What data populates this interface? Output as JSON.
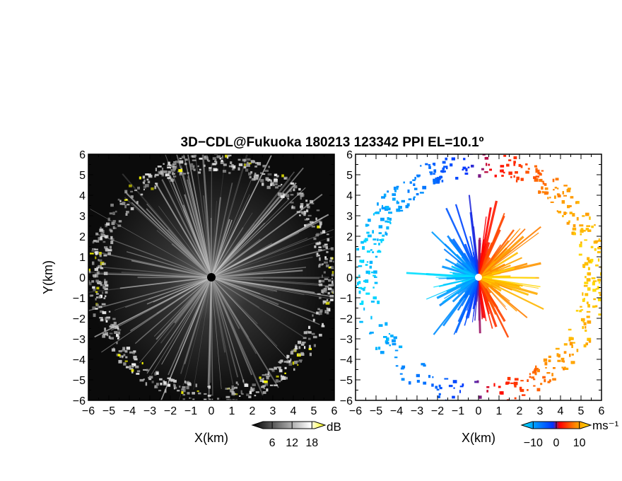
{
  "title": "3D−CDL@Fukuoka 180213 123342 PPI EL=10.1º",
  "chart_data": [
    {
      "type": "heatmap",
      "panel": "reflectivity",
      "xlabel": "X(km)",
      "ylabel": "Y(km)",
      "xlim": [
        -6,
        6
      ],
      "ylim": [
        -6,
        6
      ],
      "xticks": [
        "−6",
        "−5",
        "−4",
        "−3",
        "−2",
        "−1",
        "0",
        "1",
        "2",
        "3",
        "4",
        "5",
        "6"
      ],
      "yticks": [
        "−6",
        "−5",
        "−4",
        "−3",
        "−2",
        "−1",
        "0",
        "1",
        "2",
        "3",
        "4",
        "5",
        "6"
      ],
      "colorbar": {
        "unit": "dB",
        "ticks": [
          "6",
          "12",
          "18"
        ],
        "tick_values": [
          6,
          12,
          18
        ],
        "range": [
          0,
          22
        ],
        "colors": [
          "#000000",
          "#ffffff",
          "#ffff00"
        ]
      }
    },
    {
      "type": "heatmap",
      "panel": "doppler-velocity",
      "xlabel": "X(km)",
      "ylabel": "",
      "xlim": [
        -6,
        6
      ],
      "ylim": [
        -6,
        6
      ],
      "xticks": [
        "−6",
        "−5",
        "−4",
        "−3",
        "−2",
        "−1",
        "0",
        "1",
        "2",
        "3",
        "4",
        "5",
        "6"
      ],
      "yticks": [
        "−6",
        "−5",
        "−4",
        "−3",
        "−2",
        "−1",
        "0",
        "1",
        "2",
        "3",
        "4",
        "5",
        "6"
      ],
      "colorbar": {
        "unit": "ms⁻¹",
        "ticks": [
          "−10",
          "0",
          "10"
        ],
        "tick_values": [
          -10,
          0,
          10
        ],
        "range": [
          -15,
          15
        ],
        "colors": [
          "#00e5ff",
          "#0033ff",
          "#ff0000",
          "#ff8c00",
          "#ffe000"
        ]
      }
    }
  ]
}
